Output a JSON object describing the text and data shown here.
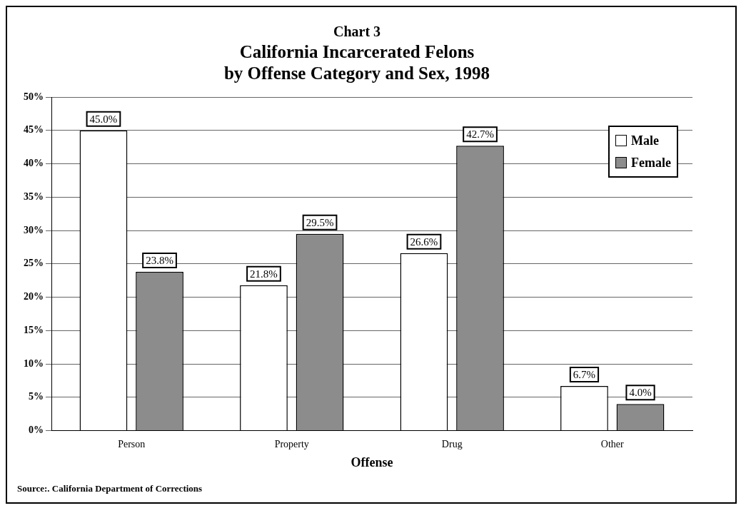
{
  "chart_data": {
    "type": "bar",
    "title": "Chart 3",
    "subtitle": "California Incarcerated Felons\nby Offense Category and Sex, 1998",
    "xlabel": "Offense",
    "categories": [
      "Person",
      "Property",
      "Drug",
      "Other"
    ],
    "series": [
      {
        "name": "Male",
        "color": "#ffffff",
        "values": [
          45.0,
          21.8,
          26.6,
          6.7
        ],
        "value_labels": [
          "45.0%",
          "21.8%",
          "26.6%",
          "6.7%"
        ]
      },
      {
        "name": "Female",
        "color": "#8c8c8c",
        "values": [
          23.8,
          29.5,
          42.7,
          4.0
        ],
        "value_labels": [
          "23.8%",
          "29.5%",
          "42.7%",
          "4.0%"
        ]
      }
    ],
    "ylim": [
      0,
      50
    ],
    "yticks": [
      {
        "value": 0,
        "label": "0%"
      },
      {
        "value": 5,
        "label": "5%"
      },
      {
        "value": 10,
        "label": "10%"
      },
      {
        "value": 15,
        "label": "15%"
      },
      {
        "value": 20,
        "label": "20%"
      },
      {
        "value": 25,
        "label": "25%"
      },
      {
        "value": 30,
        "label": "30%"
      },
      {
        "value": 35,
        "label": "35%"
      },
      {
        "value": 40,
        "label": "40%"
      },
      {
        "value": 45,
        "label": "45%"
      },
      {
        "value": 50,
        "label": "50%"
      }
    ],
    "grid": "y",
    "legend": "top right",
    "annotations": [
      "Source:. California Department of Corrections"
    ]
  }
}
